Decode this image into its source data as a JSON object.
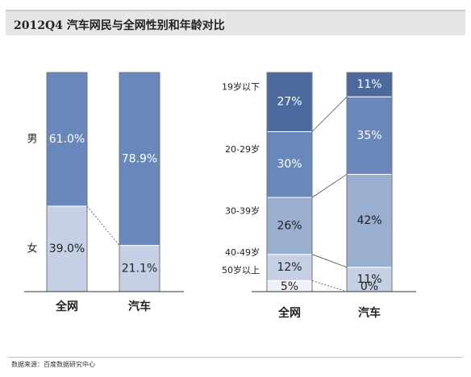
{
  "title": "2012Q4 汽车网民与全网性别和年龄对比",
  "source": "数据来源：百度数据研究中心",
  "colors": {
    "dark": "#4d6a9e",
    "mid": "#6887bb",
    "light": "#9aaecf",
    "pale": "#c6d0e4",
    "white": "#eef1f7",
    "text": "#ffffff",
    "dark_text": "#222222"
  },
  "chart_data": [
    {
      "type": "bar",
      "stacked": true,
      "categories": [
        "全网",
        "汽车"
      ],
      "series": [
        {
          "name": "女",
          "values": [
            39.0,
            21.1
          ],
          "labels": [
            "39.0%",
            "21.1%"
          ]
        },
        {
          "name": "男",
          "values": [
            61.0,
            78.9
          ],
          "labels": [
            "61.0%",
            "78.9%"
          ]
        }
      ]
    },
    {
      "type": "bar",
      "stacked": true,
      "categories": [
        "全网",
        "汽车"
      ],
      "series": [
        {
          "name": "50岁以上",
          "values": [
            5,
            0
          ],
          "labels": [
            "5%",
            "0%"
          ]
        },
        {
          "name": "40-49岁",
          "values": [
            12,
            11
          ],
          "labels": [
            "12%",
            "11%"
          ]
        },
        {
          "name": "30-39岁",
          "values": [
            26,
            42
          ],
          "labels": [
            "26%",
            "42%"
          ]
        },
        {
          "name": "20-29岁",
          "values": [
            30,
            35
          ],
          "labels": [
            "30%",
            "35%"
          ]
        },
        {
          "name": "19岁以下",
          "values": [
            27,
            11
          ],
          "labels": [
            "27%",
            "11%"
          ]
        }
      ]
    }
  ]
}
